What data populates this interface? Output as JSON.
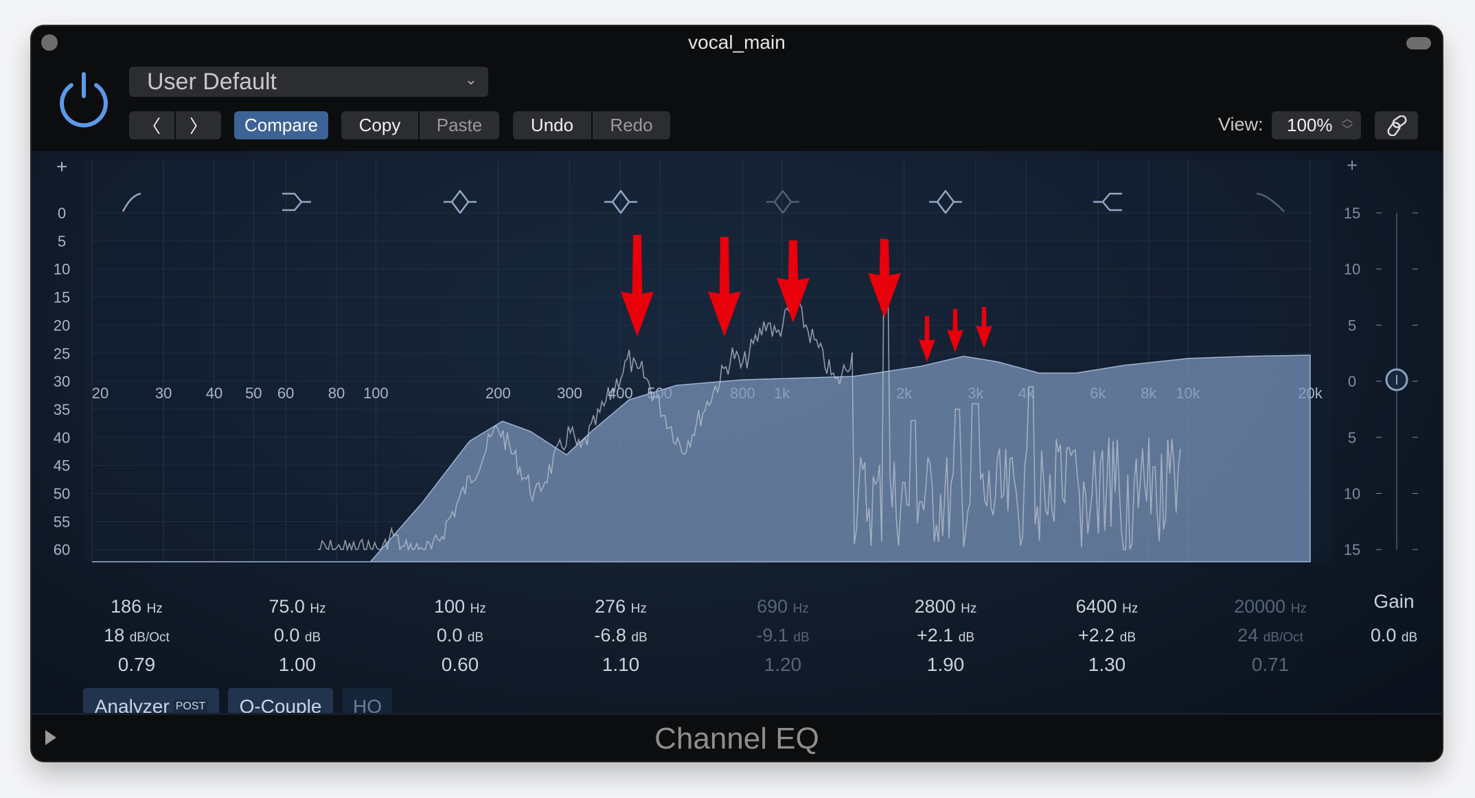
{
  "window": {
    "title": "vocal_main",
    "plugin_name": "Channel EQ"
  },
  "header": {
    "preset": "User Default",
    "prev": "prev",
    "next": "next",
    "compare": "Compare",
    "copy": "Copy",
    "paste": "Paste",
    "undo": "Undo",
    "redo": "Redo",
    "view_label": "View:",
    "view_value": "100%"
  },
  "graph": {
    "freq_labels": [
      "20",
      "30",
      "40",
      "50",
      "60",
      "80",
      "100",
      "200",
      "300",
      "400",
      "500",
      "800",
      "1k",
      "2k",
      "3k",
      "4k",
      "6k",
      "8k",
      "10k",
      "20k"
    ],
    "left_scale": [
      "0",
      "5",
      "10",
      "15",
      "20",
      "25",
      "30",
      "35",
      "40",
      "45",
      "50",
      "55",
      "60"
    ],
    "right_scale": [
      "15",
      "10",
      "5",
      "0",
      "5",
      "10",
      "15"
    ],
    "add_left": "+",
    "add_right": "+"
  },
  "bands": [
    {
      "type": "low-cut",
      "freq": "186",
      "freq_unit": "Hz",
      "gain": "18",
      "gain_unit": "dB/Oct",
      "q": "0.79",
      "enabled": true
    },
    {
      "type": "low-shelf",
      "freq": "75.0",
      "freq_unit": "Hz",
      "gain": "0.0",
      "gain_unit": "dB",
      "q": "1.00",
      "enabled": true
    },
    {
      "type": "bell",
      "freq": "100",
      "freq_unit": "Hz",
      "gain": "0.0",
      "gain_unit": "dB",
      "q": "0.60",
      "enabled": true
    },
    {
      "type": "bell",
      "freq": "276",
      "freq_unit": "Hz",
      "gain": "-6.8",
      "gain_unit": "dB",
      "q": "1.10",
      "enabled": true
    },
    {
      "type": "bell",
      "freq": "690",
      "freq_unit": "Hz",
      "gain": "-9.1",
      "gain_unit": "dB",
      "q": "1.20",
      "enabled": false
    },
    {
      "type": "bell",
      "freq": "2800",
      "freq_unit": "Hz",
      "gain": "+2.1",
      "gain_unit": "dB",
      "q": "1.90",
      "enabled": true
    },
    {
      "type": "high-shelf",
      "freq": "6400",
      "freq_unit": "Hz",
      "gain": "+2.2",
      "gain_unit": "dB",
      "q": "1.30",
      "enabled": true
    },
    {
      "type": "high-cut",
      "freq": "20000",
      "freq_unit": "Hz",
      "gain": "24",
      "gain_unit": "dB/Oct",
      "q": "0.71",
      "enabled": false
    }
  ],
  "master_gain": {
    "label": "Gain",
    "value": "0.0",
    "unit": "dB"
  },
  "toggles": {
    "analyzer": "Analyzer",
    "analyzer_mode": "POST",
    "q_couple": "Q-Couple",
    "hq": "HQ"
  },
  "colors": {
    "accent": "#3d6396",
    "power": "#5b9ae8",
    "eq_fill": "#7d97bd",
    "annotation": "#e8000b"
  }
}
